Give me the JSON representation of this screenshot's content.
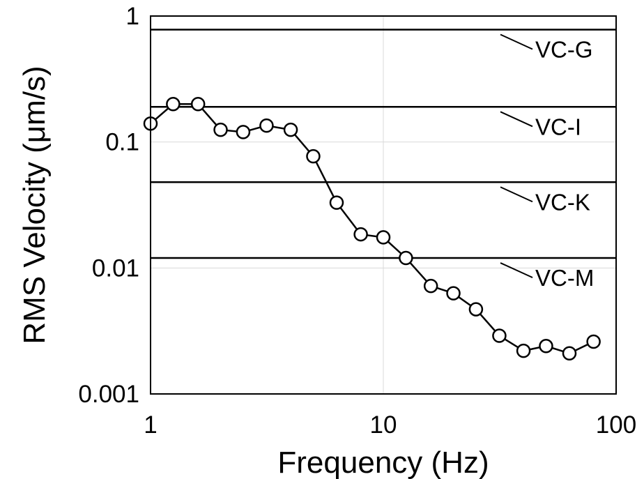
{
  "chart_data": {
    "type": "line",
    "title": "",
    "xlabel": "Frequency (Hz)",
    "ylabel": "RMS Velocity (μm/s)",
    "xscale": "log",
    "yscale": "log",
    "xlim": [
      1,
      100
    ],
    "ylim": [
      0.001,
      1
    ],
    "grid": true,
    "x_ticks": [
      1,
      10,
      100
    ],
    "x_tick_labels": [
      "1",
      "10",
      "100"
    ],
    "y_ticks": [
      0.001,
      0.01,
      0.1,
      1
    ],
    "y_tick_labels": [
      "0.001",
      "0.01",
      "0.1",
      "1"
    ],
    "series": [
      {
        "marker": "open-circle",
        "color": "#000000",
        "x": [
          1,
          1.25,
          1.6,
          2,
          2.5,
          3.15,
          4,
          5,
          6.3,
          8,
          10,
          12.5,
          16,
          20,
          25,
          31.5,
          40,
          50,
          63,
          80
        ],
        "y": [
          0.14,
          0.2,
          0.2,
          0.125,
          0.12,
          0.135,
          0.125,
          0.077,
          0.033,
          0.0185,
          0.0175,
          0.012,
          0.0072,
          0.0063,
          0.0047,
          0.0029,
          0.0022,
          0.0024,
          0.0021,
          0.0026
        ]
      }
    ],
    "reference_lines": [
      {
        "label": "VC-G",
        "y": 0.78
      },
      {
        "label": "VC-I",
        "y": 0.19
      },
      {
        "label": "VC-K",
        "y": 0.048
      },
      {
        "label": "VC-M",
        "y": 0.012
      }
    ]
  }
}
